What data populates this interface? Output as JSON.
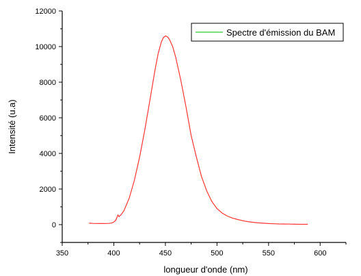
{
  "chart_data": {
    "type": "line",
    "title": "",
    "xlabel": "longueur d'onde (nm)",
    "ylabel": "Intensité (u.a)",
    "xlim": [
      350,
      625
    ],
    "ylim": [
      -1000,
      12000
    ],
    "x_ticks": [
      "350",
      "400",
      "450",
      "500",
      "550",
      "600"
    ],
    "y_ticks": [
      "0",
      "2000",
      "4000",
      "6000",
      "8000",
      "10000",
      "12000"
    ],
    "grid": false,
    "legend_position": "top-right",
    "series": [
      {
        "name": "Spectre d'émission du BAM",
        "color": "#ff3333",
        "legend_color": "#33cc33",
        "x": [
          376,
          380,
          385,
          390,
          395,
          398,
          400,
          402,
          403,
          404,
          405,
          407,
          410,
          415,
          420,
          425,
          430,
          435,
          440,
          443,
          446,
          448,
          450,
          452,
          454,
          457,
          460,
          465,
          470,
          475,
          480,
          485,
          490,
          495,
          500,
          505,
          510,
          515,
          520,
          525,
          530,
          535,
          540,
          545,
          550,
          555,
          560,
          565,
          570,
          575,
          580,
          588
        ],
        "y": [
          80,
          70,
          60,
          60,
          70,
          90,
          150,
          250,
          400,
          550,
          450,
          550,
          800,
          1500,
          2500,
          3800,
          5300,
          7000,
          8700,
          9600,
          10250,
          10500,
          10600,
          10550,
          10400,
          10000,
          9400,
          8100,
          6600,
          5000,
          3800,
          2700,
          1900,
          1300,
          900,
          650,
          480,
          370,
          290,
          220,
          170,
          130,
          100,
          80,
          60,
          50,
          40,
          35,
          30,
          25,
          20,
          20
        ]
      }
    ]
  }
}
